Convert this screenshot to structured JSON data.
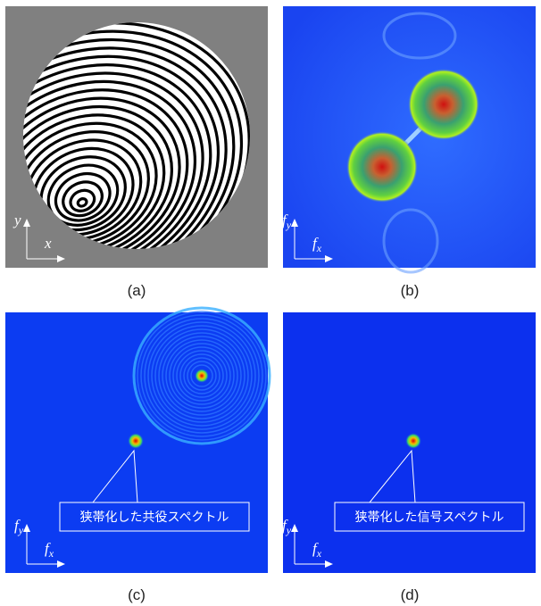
{
  "panels": [
    {
      "label": "(a)",
      "axis_x": {
        "main": "x"
      },
      "axis_y": {
        "main": "y"
      }
    },
    {
      "label": "(b)",
      "axis_x": {
        "main": "f",
        "sub": "x"
      },
      "axis_y": {
        "main": "f",
        "sub": "y"
      }
    },
    {
      "label": "(c)",
      "axis_x": {
        "main": "f",
        "sub": "x"
      },
      "axis_y": {
        "main": "f",
        "sub": "y"
      },
      "callout": "狭帯化した共役スペクトル"
    },
    {
      "label": "(d)",
      "axis_x": {
        "main": "f",
        "sub": "x"
      },
      "axis_y": {
        "main": "f",
        "sub": "y"
      },
      "callout": "狭帯化した信号スペクトル"
    }
  ]
}
